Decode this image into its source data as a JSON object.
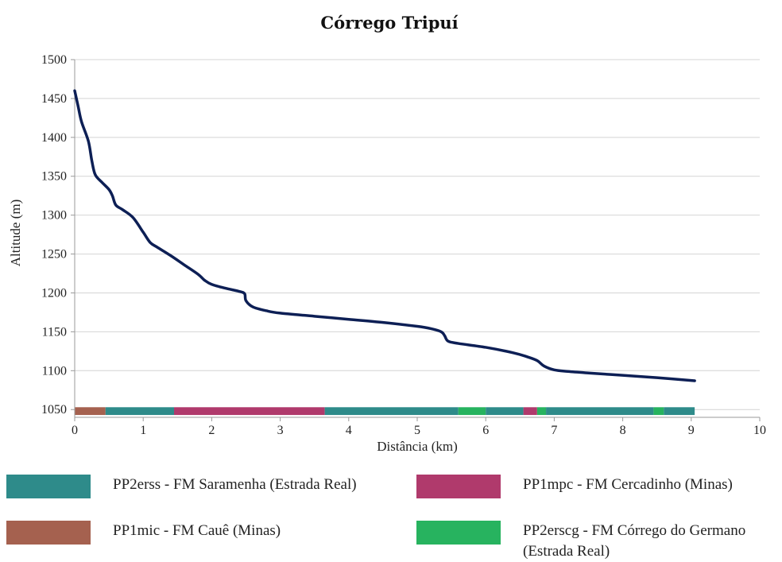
{
  "chart_data": {
    "type": "line",
    "title": "Córrego Tripuí",
    "xlabel": "Distância (km)",
    "ylabel": "Altitude (m)",
    "xlim": [
      0,
      10
    ],
    "ylim": [
      1040,
      1500
    ],
    "x_ticks": [
      0,
      1,
      2,
      3,
      4,
      5,
      6,
      7,
      8,
      9,
      10
    ],
    "y_ticks": [
      1050,
      1100,
      1150,
      1200,
      1250,
      1300,
      1350,
      1400,
      1450,
      1500
    ],
    "grid": "horizontal",
    "line_color": "#0d1f55",
    "series": [
      {
        "x": [
          0,
          0.05,
          0.1,
          0.2,
          0.25,
          0.3,
          0.4,
          0.5,
          0.55,
          0.6,
          0.7,
          0.85,
          1.0,
          1.1,
          1.2,
          1.4,
          1.6,
          1.8,
          1.9,
          2.0,
          2.2,
          2.4,
          2.48,
          2.5,
          2.6,
          2.8,
          3.0,
          3.5,
          4.0,
          4.5,
          5.0,
          5.2,
          5.35,
          5.4,
          5.45,
          5.6,
          6.0,
          6.4,
          6.6,
          6.75,
          6.85,
          7.0,
          7.2,
          7.5,
          8.0,
          8.5,
          9.05
        ],
        "y": [
          1460,
          1440,
          1420,
          1395,
          1370,
          1352,
          1342,
          1333,
          1325,
          1313,
          1307,
          1297,
          1278,
          1265,
          1259,
          1248,
          1236,
          1224,
          1216,
          1211,
          1206,
          1202,
          1199,
          1190,
          1182,
          1177,
          1174,
          1170,
          1166,
          1162,
          1157,
          1154,
          1150,
          1145,
          1138,
          1135,
          1130,
          1123,
          1118,
          1113,
          1106,
          1101,
          1099,
          1097,
          1094,
          1091,
          1087
        ]
      }
    ],
    "geology_bar": {
      "y_range": [
        1043,
        1053
      ],
      "segments": [
        {
          "from": 0.0,
          "to": 0.45,
          "unit": "PP1mic"
        },
        {
          "from": 0.45,
          "to": 1.45,
          "unit": "PP2erss"
        },
        {
          "from": 1.45,
          "to": 3.65,
          "unit": "PP1mpc"
        },
        {
          "from": 3.65,
          "to": 5.6,
          "unit": "PP2erss"
        },
        {
          "from": 5.6,
          "to": 6.0,
          "unit": "PP2erscg"
        },
        {
          "from": 6.0,
          "to": 6.55,
          "unit": "PP2erss"
        },
        {
          "from": 6.55,
          "to": 6.75,
          "unit": "PP1mpc"
        },
        {
          "from": 6.75,
          "to": 6.88,
          "unit": "PP2erscg"
        },
        {
          "from": 6.88,
          "to": 8.45,
          "unit": "PP2erss"
        },
        {
          "from": 8.45,
          "to": 8.6,
          "unit": "PP2erscg"
        },
        {
          "from": 8.6,
          "to": 9.05,
          "unit": "PP2erss"
        }
      ]
    },
    "legend": [
      {
        "unit": "PP2erss",
        "label": "PP2erss - FM Saramenha (Estrada Real)",
        "color": "#2e8b8a"
      },
      {
        "unit": "PP1mpc",
        "label": "PP1mpc - FM Cercadinho (Minas)",
        "color": "#b03a6c"
      },
      {
        "unit": "PP1mic",
        "label": "PP1mic - FM Cauê (Minas)",
        "color": "#a5614f"
      },
      {
        "unit": "PP2erscg",
        "label": "PP2erscg - FM Córrego do Germano\n(Estrada Real)",
        "color": "#27b35f"
      }
    ]
  }
}
